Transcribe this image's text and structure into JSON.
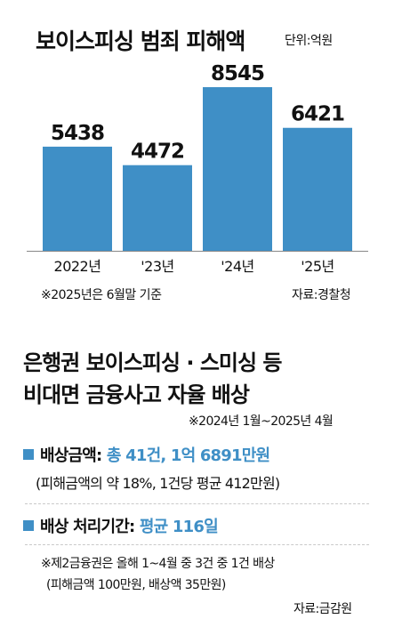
{
  "chart_data": {
    "type": "bar",
    "title": "보이스피싱 범죄 피해액",
    "unit_label": "단위:억원",
    "categories": [
      "2022년",
      "'23년",
      "'24년",
      "'25년"
    ],
    "values": [
      5438,
      4472,
      8545,
      6421
    ],
    "data_labels": [
      "5438",
      "4472",
      "8545",
      "6421"
    ],
    "ylim": [
      0,
      9000
    ],
    "grid": false,
    "bar_color": "#3f8fc6",
    "footnote": "※2025년은 6월말 기준",
    "source": "자료:경찰청"
  },
  "section2": {
    "title_line1": "은행권 보이스피싱 · 스미싱 등",
    "title_line2": "비대면 금융사고 자율 배상",
    "period": "※2024년 1월~2025년 4월",
    "compensation": {
      "label": "배상금액:",
      "value": "총 41건, 1억 6891만원",
      "detail": "(피해금액의 약 18%, 1건당 평균 412만원)"
    },
    "processing": {
      "label": "배상 처리기간:",
      "value": "평균 116일"
    },
    "note_line1": "※제2금융권은 올해 1~4월 중 3건 중 1건 배상",
    "note_line2": "(피해금액 100만원, 배상액 35만원)",
    "source": "자료:금감원"
  },
  "colors": {
    "accent": "#3f8fc6",
    "text": "#111111",
    "divider": "#c9c9c9"
  }
}
